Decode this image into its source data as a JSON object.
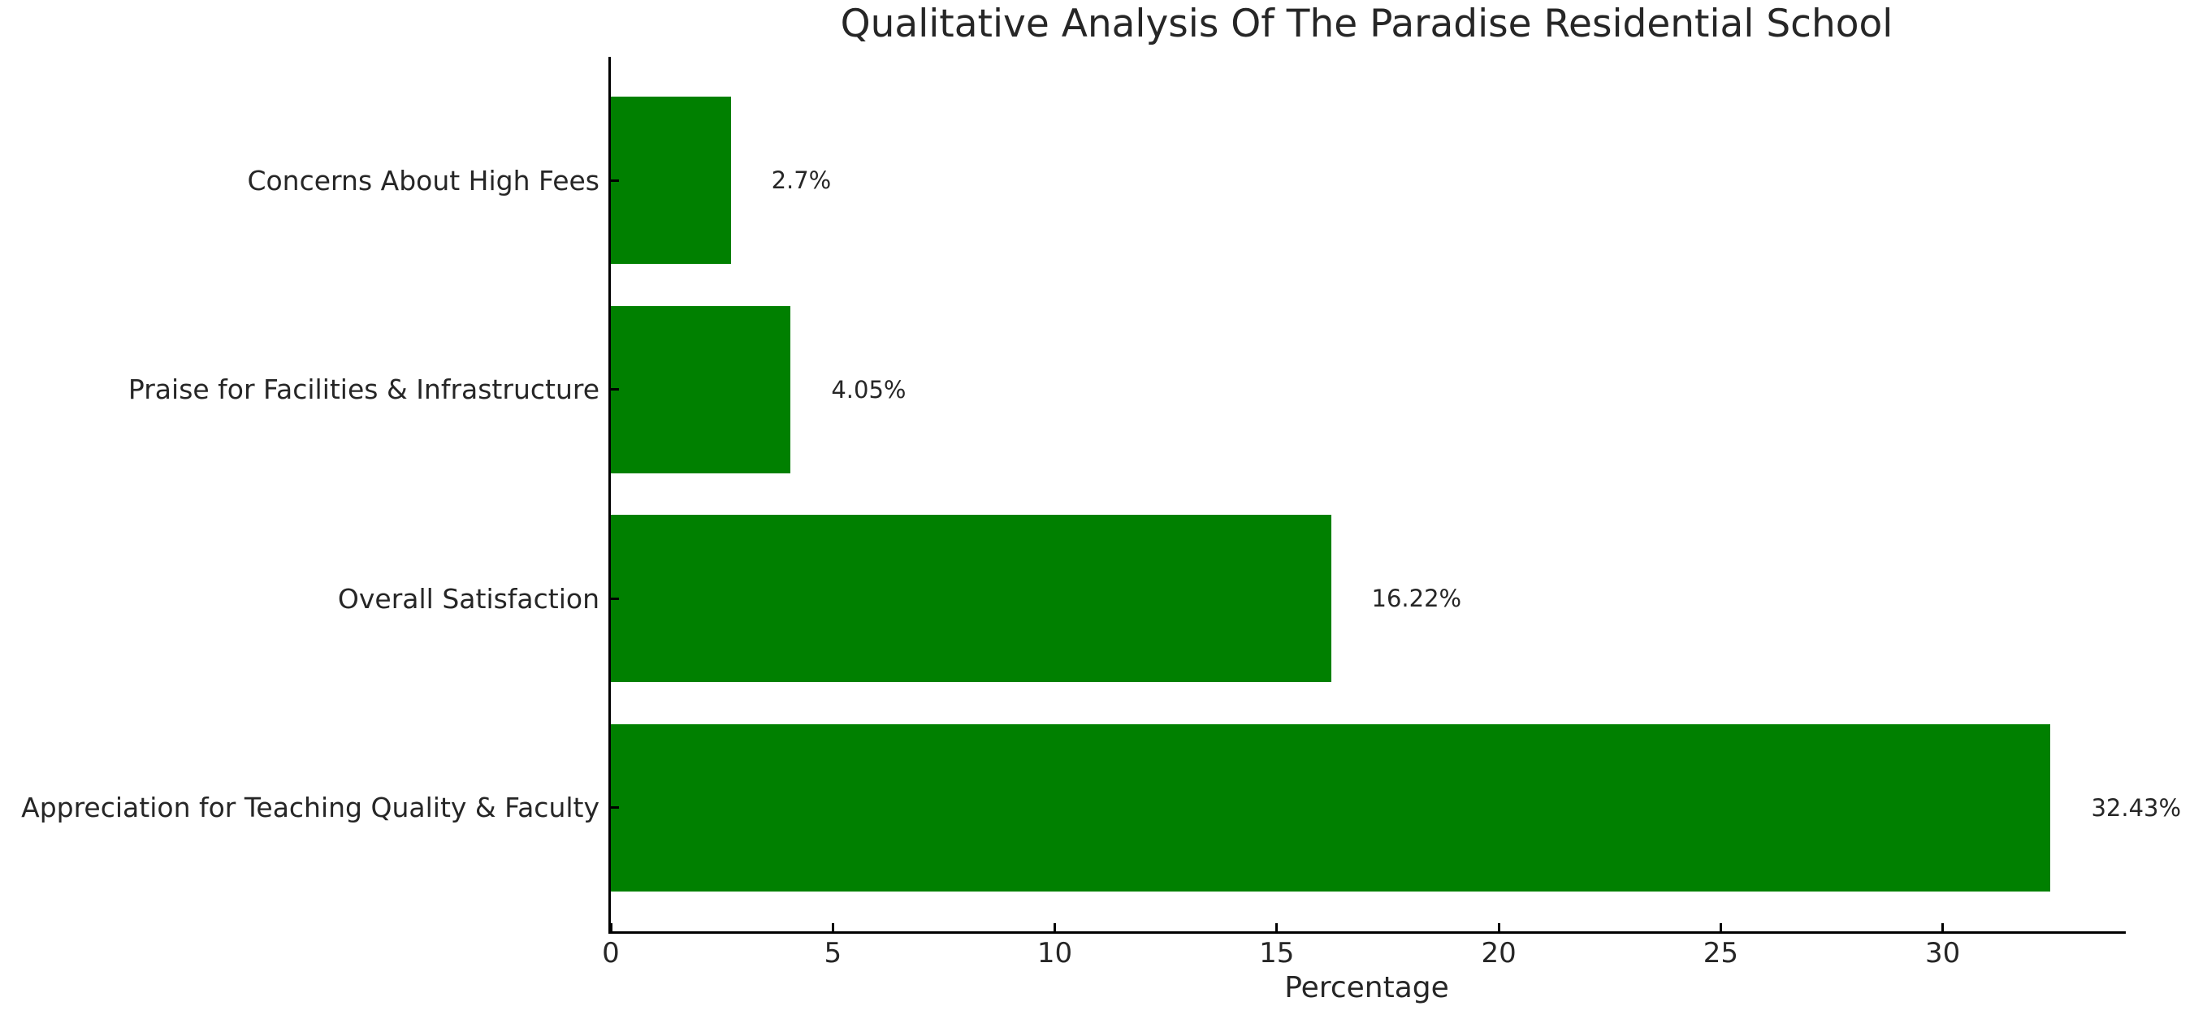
{
  "title": "Qualitative Analysis Of The Paradise Residential School",
  "chart_data": {
    "type": "bar",
    "orientation": "horizontal",
    "title": "Qualitative Analysis Of The Paradise Residential School",
    "categories": [
      "Concerns About High Fees",
      "Praise for Facilities & Infrastructure",
      "Overall Satisfaction",
      "Appreciation for Teaching Quality & Faculty"
    ],
    "values": [
      2.7,
      4.05,
      16.22,
      32.43
    ],
    "value_labels": [
      "2.7%",
      "4.05%",
      "16.22%",
      "32.43%"
    ],
    "xlabel": "Percentage",
    "ylabel": "",
    "xlim": [
      0,
      34.05
    ],
    "xticks": [
      0,
      5,
      10,
      15,
      20,
      25,
      30
    ],
    "grid": false,
    "legend": false,
    "bar_color": "#008000",
    "text_color": "#262626",
    "axis_color": "#000000",
    "background_color": "#ffffff"
  }
}
